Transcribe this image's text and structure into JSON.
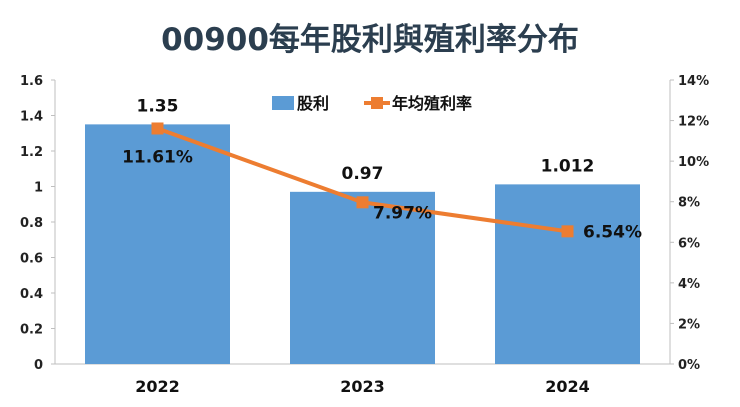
{
  "chart_data": {
    "type": "bar+line",
    "title": "00900每年股利與殖利率分布",
    "categories": [
      "2022",
      "2023",
      "2024"
    ],
    "series": [
      {
        "name": "股利",
        "type": "bar",
        "axis": "left",
        "values": [
          1.35,
          0.97,
          1.012
        ],
        "labels": [
          "1.35",
          "0.97",
          "1.012"
        ],
        "color": "#5b9bd5"
      },
      {
        "name": "年均殖利率",
        "type": "line",
        "axis": "right",
        "values": [
          11.61,
          7.97,
          6.54
        ],
        "labels": [
          "11.61%",
          "7.97%",
          "6.54%"
        ],
        "color": "#ed7d31"
      }
    ],
    "left_axis": {
      "ylim": [
        0,
        1.6
      ],
      "ticks": [
        "0",
        "0.2",
        "0.4",
        "0.6",
        "0.8",
        "1",
        "1.2",
        "1.4",
        "1.6"
      ]
    },
    "right_axis": {
      "ylim": [
        0,
        14
      ],
      "ticks": [
        "0%",
        "2%",
        "4%",
        "6%",
        "8%",
        "10%",
        "12%",
        "14%"
      ]
    },
    "legend": "top-center",
    "grid": false
  }
}
